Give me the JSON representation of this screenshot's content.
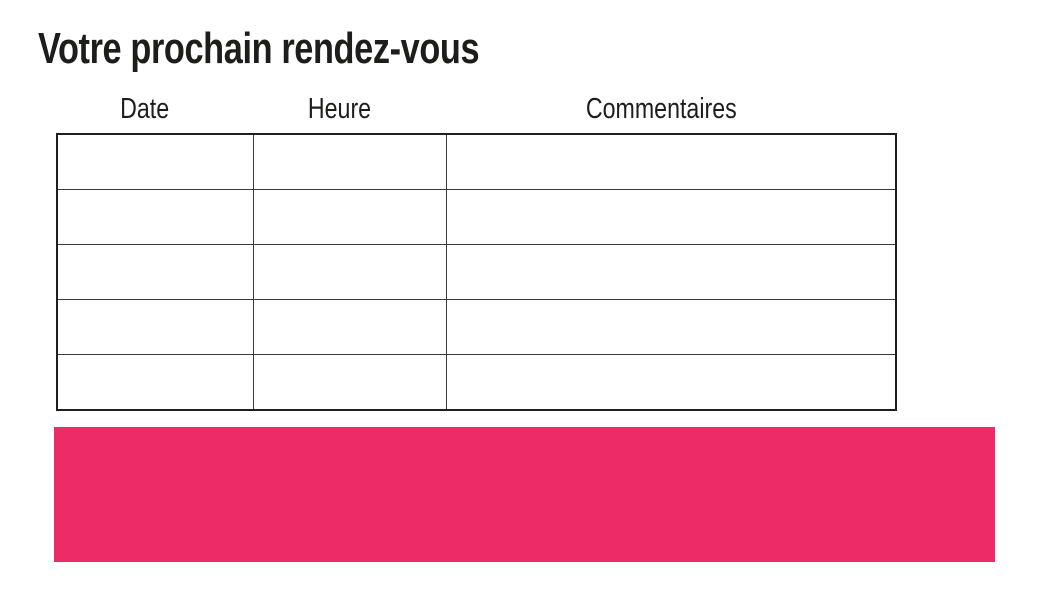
{
  "page": {
    "title": "Votre prochain rendez-vous"
  },
  "table": {
    "headers": [
      "Date",
      "Heure",
      "Commentaires"
    ],
    "rows": [
      [
        "",
        "",
        ""
      ],
      [
        "",
        "",
        ""
      ],
      [
        "",
        "",
        ""
      ],
      [
        "",
        "",
        ""
      ],
      [
        "",
        "",
        ""
      ]
    ]
  },
  "banner": {
    "color": "#ED2B67"
  },
  "colors": {
    "text": "#1d1d1b",
    "table_border": "#3a3a3a",
    "table_outer_border": "#1f1f1f",
    "background": "#ffffff",
    "accent": "#ED2B67"
  }
}
